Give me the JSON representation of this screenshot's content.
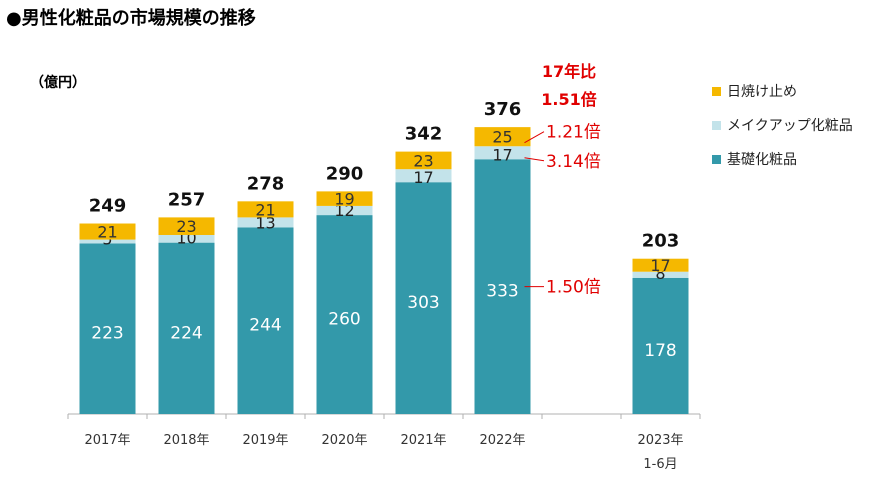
{
  "title": "●男性化粧品の市場規模の推移",
  "chart_data": {
    "type": "bar",
    "stacked": true,
    "ylabel": "（億円）",
    "categories": [
      {
        "label": "2017年",
        "sub": ""
      },
      {
        "label": "2018年",
        "sub": ""
      },
      {
        "label": "2019年",
        "sub": ""
      },
      {
        "label": "2020年",
        "sub": ""
      },
      {
        "label": "2021年",
        "sub": ""
      },
      {
        "label": "2022年",
        "sub": ""
      },
      {
        "label": "",
        "sub": ""
      },
      {
        "label": "2023年",
        "sub": "1-6月"
      }
    ],
    "series": [
      {
        "name": "基礎化粧品",
        "color": "#3399aa",
        "label_color": "#ffffff",
        "values": [
          223,
          224,
          244,
          260,
          303,
          333,
          null,
          178
        ]
      },
      {
        "name": "メイクアップ化粧品",
        "color": "#c3e3ea",
        "label_color": "#222222",
        "values": [
          5,
          10,
          13,
          12,
          17,
          17,
          null,
          8
        ]
      },
      {
        "name": "日焼け止め",
        "color": "#f5b800",
        "label_color": "#333333",
        "values": [
          21,
          23,
          21,
          19,
          23,
          25,
          null,
          17
        ]
      }
    ],
    "totals": [
      249,
      257,
      278,
      290,
      342,
      376,
      null,
      203
    ],
    "ylim": [
      0,
      400
    ],
    "legend": [
      "日焼け止め",
      "メイクアップ化粧品",
      "基礎化粧品"
    ],
    "annotations": [
      {
        "text": "1.21倍",
        "category": 5,
        "series": 2
      },
      {
        "text": "3.14倍",
        "category": 5,
        "series": 1
      },
      {
        "text": "1.50倍",
        "category": 5,
        "series": 0
      }
    ],
    "callout": {
      "line1": "17年比",
      "line2": "1.51倍"
    }
  }
}
